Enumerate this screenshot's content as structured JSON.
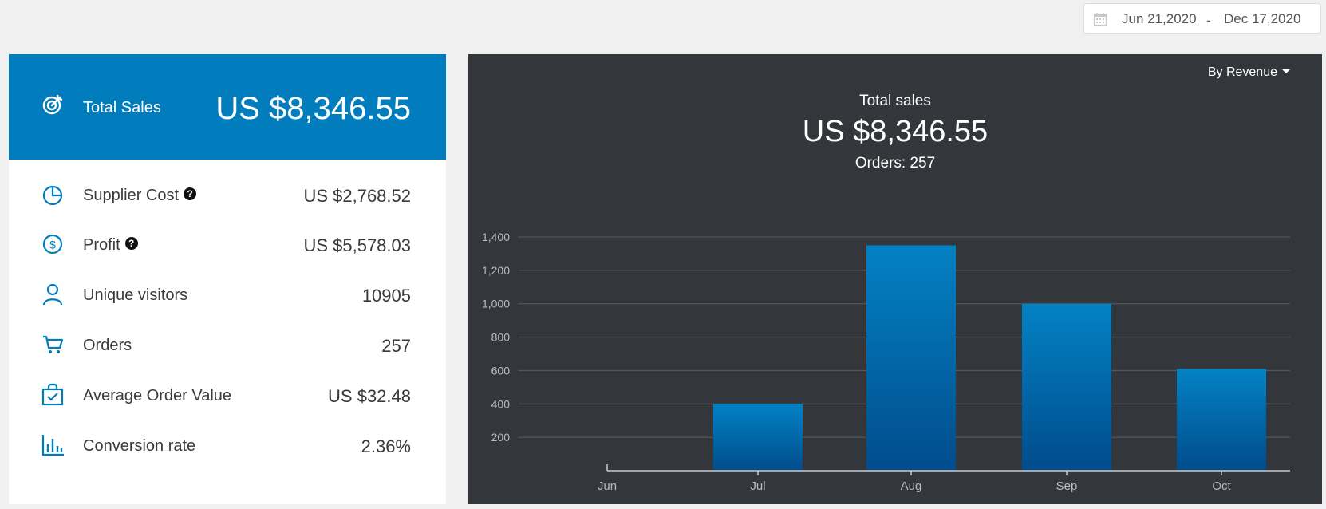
{
  "date_range": {
    "start": "Jun 21,2020",
    "separator": "-",
    "end": "Dec 17,2020",
    "icon": "calendar-icon"
  },
  "summary": {
    "total": {
      "label": "Total Sales",
      "value": "US $8,346.55",
      "icon": "target-icon"
    },
    "metrics": [
      {
        "label": "Supplier Cost",
        "value": "US $2,768.52",
        "icon": "pie-chart-icon",
        "help": true
      },
      {
        "label": "Profit",
        "value": "US $5,578.03",
        "icon": "dollar-circle-icon",
        "help": true
      },
      {
        "label": "Unique visitors",
        "value": "10905",
        "icon": "user-icon",
        "help": false
      },
      {
        "label": "Orders",
        "value": "257",
        "icon": "cart-icon",
        "help": false
      },
      {
        "label": "Average Order Value",
        "value": "US $32.48",
        "icon": "bag-check-icon",
        "help": false
      },
      {
        "label": "Conversion rate",
        "value": "2.36%",
        "icon": "bar-chart-icon",
        "help": false
      }
    ]
  },
  "chart_panel": {
    "selector_label": "By Revenue",
    "title": "Total sales",
    "total": "US $8,346.55",
    "orders": "Orders: 257"
  },
  "colors": {
    "accent": "#017cbd",
    "chart_bg": "#33373b",
    "bar_top": "#0282c4",
    "bar_bottom": "#014c8c"
  },
  "chart_data": {
    "type": "bar",
    "categories": [
      "Jun",
      "Jul",
      "Aug",
      "Sep",
      "Oct"
    ],
    "values": [
      0,
      400,
      1350,
      1000,
      610
    ],
    "yticks": [
      "200",
      "400",
      "600",
      "800",
      "1,000",
      "1,200",
      "1,400"
    ],
    "ytick_values": [
      200,
      400,
      600,
      800,
      1000,
      1200,
      1400
    ],
    "ylim": [
      0,
      1400
    ],
    "grid": true,
    "title": "",
    "xlabel": "",
    "ylabel": ""
  }
}
